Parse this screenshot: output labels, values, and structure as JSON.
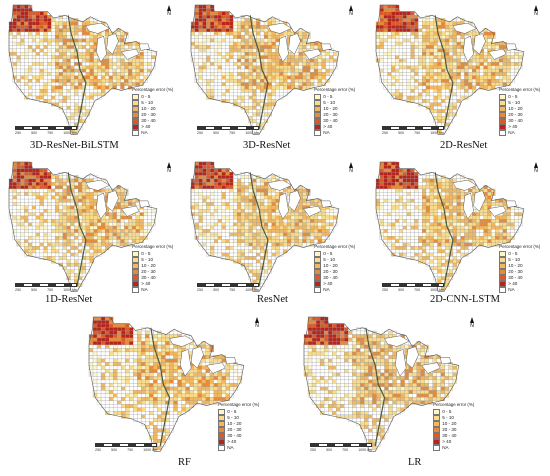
{
  "legend": {
    "title": "Percentage error (%)",
    "classes": [
      {
        "label": "0 - 5",
        "color": "#fdf6c8"
      },
      {
        "label": "5 - 10",
        "color": "#f8dc8c"
      },
      {
        "label": "10 - 20",
        "color": "#f1b860"
      },
      {
        "label": "20 - 30",
        "color": "#e48c3c"
      },
      {
        "label": "30 - 40",
        "color": "#d85c2a"
      },
      {
        "label": "> 40",
        "color": "#b8231c"
      },
      {
        "label": "NA",
        "color": "#ffffff"
      }
    ]
  },
  "north_label": "N",
  "scale_labels": [
    "250",
    "500",
    "750",
    "1000 km"
  ],
  "colors": {
    "boundary": "#999999",
    "outline": "#555555",
    "river": "#4a5a40"
  },
  "maps": [
    {
      "title": "3D-ResNet-BiLSTM",
      "intensity": 0.55
    },
    {
      "title": "3D-ResNet",
      "intensity": 0.6
    },
    {
      "title": "2D-ResNet",
      "intensity": 0.5
    },
    {
      "title": "1D-ResNet",
      "intensity": 0.45
    },
    {
      "title": "ResNet",
      "intensity": 0.5
    },
    {
      "title": "2D-CNN-LSTM",
      "intensity": 0.6
    },
    {
      "title": "RF",
      "intensity": 0.7
    },
    {
      "title": "LR",
      "intensity": 0.75
    }
  ]
}
